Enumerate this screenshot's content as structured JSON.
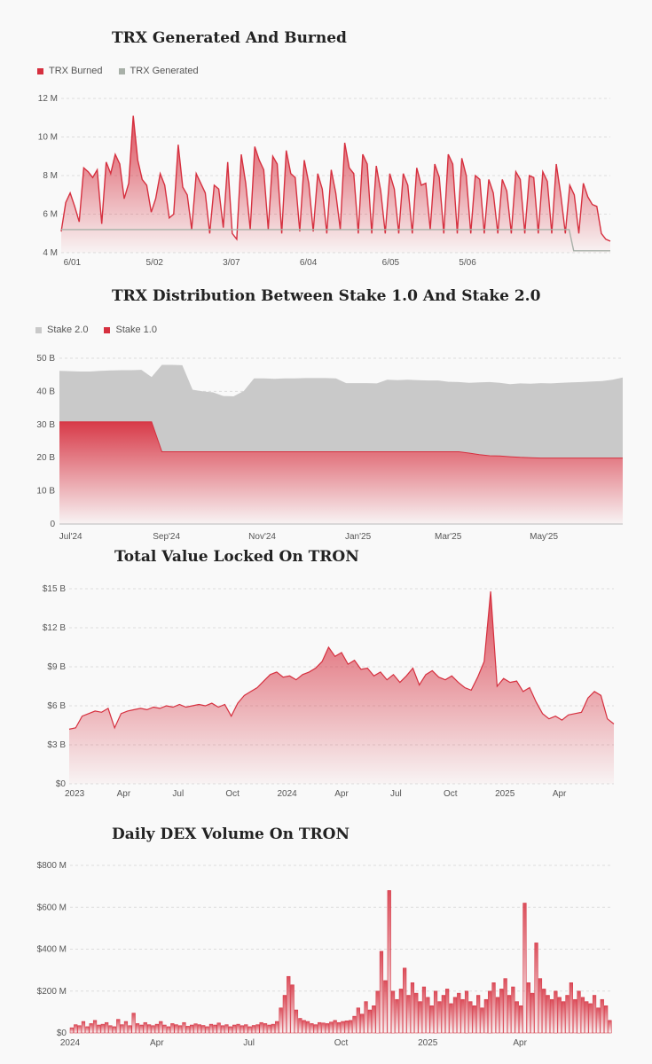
{
  "colors": {
    "red": "#d6303f",
    "gray": "#a8b0a8",
    "stake2": "#c9c9c9",
    "grid": "#dddddd"
  },
  "chart_data": [
    {
      "id": "trx",
      "type": "area",
      "title": "TRX Generated And Burned",
      "legend": [
        {
          "label": "TRX Burned",
          "color": "#d6303f"
        },
        {
          "label": "TRX Generated",
          "color": "#a8b0a8"
        }
      ],
      "y_ticks": [
        "12 M",
        "10 M",
        "8 M",
        "6 M",
        "4 M"
      ],
      "y_tick_values": [
        12,
        10,
        8,
        6,
        4
      ],
      "ylim": [
        4,
        12
      ],
      "x_ticks": [
        "6/01",
        "5/02",
        "3/07",
        "6/04",
        "6/05",
        "5/06"
      ],
      "x_tick_positions": [
        0.02,
        0.17,
        0.31,
        0.45,
        0.6,
        0.74
      ],
      "grid": true,
      "series": [
        {
          "name": "TRX Burned",
          "color": "#d6303f",
          "values": [
            5.1,
            6.6,
            7.1,
            6.4,
            5.6,
            8.4,
            8.2,
            7.9,
            8.3,
            5.5,
            8.7,
            8.1,
            9.1,
            8.6,
            6.8,
            7.6,
            11.1,
            8.8,
            7.8,
            7.5,
            6.1,
            6.8,
            8.1,
            7.5,
            5.8,
            6.0,
            9.6,
            7.4,
            7.0,
            5.2,
            8.1,
            7.6,
            7.1,
            5.0,
            7.5,
            7.3,
            5.3,
            8.7,
            5.0,
            4.7,
            9.1,
            7.6,
            5.2,
            9.5,
            8.8,
            8.3,
            5.2,
            9.0,
            8.6,
            5.0,
            9.3,
            8.1,
            7.9,
            5.1,
            8.8,
            7.6,
            5.1,
            8.1,
            7.3,
            5.0,
            8.3,
            7.1,
            5.2,
            9.7,
            8.4,
            8.1,
            5.0,
            9.1,
            8.6,
            5.0,
            8.5,
            7.2,
            5.0,
            8.1,
            7.3,
            5.0,
            8.1,
            7.5,
            5.0,
            8.4,
            7.5,
            7.6,
            5.2,
            8.6,
            7.9,
            5.0,
            9.1,
            8.6,
            5.0,
            8.9,
            8.0,
            5.0,
            8.0,
            7.8,
            5.0,
            7.8,
            7.1,
            5.0,
            7.8,
            7.2,
            5.0,
            8.2,
            7.8,
            5.0,
            8.0,
            7.9,
            5.0,
            8.2,
            7.7,
            5.0,
            8.6,
            7.0,
            5.0,
            7.5,
            7.0,
            5.0,
            7.6,
            6.9,
            6.5,
            6.4,
            5.0,
            4.7,
            4.6
          ]
        },
        {
          "name": "TRX Generated",
          "color": "#a8b0a8",
          "values": [
            5.2,
            5.2,
            5.2,
            5.2,
            5.2,
            5.2,
            5.2,
            5.2,
            5.2,
            5.2,
            5.2,
            5.2,
            5.2,
            5.2,
            5.2,
            5.2,
            5.2,
            5.2,
            5.2,
            5.2,
            5.2,
            5.2,
            5.2,
            5.2,
            5.2,
            5.2,
            5.2,
            5.2,
            5.2,
            5.2,
            5.2,
            5.2,
            5.2,
            5.2,
            5.2,
            5.2,
            5.2,
            5.2,
            5.2,
            5.2,
            5.2,
            5.2,
            5.2,
            5.2,
            5.2,
            5.2,
            5.2,
            5.2,
            5.2,
            5.2,
            5.2,
            5.2,
            5.2,
            5.2,
            5.2,
            5.2,
            5.2,
            5.2,
            5.2,
            5.2,
            5.2,
            5.2,
            5.2,
            5.2,
            5.2,
            5.2,
            5.2,
            5.2,
            5.2,
            5.2,
            5.2,
            5.2,
            5.2,
            5.2,
            5.2,
            5.2,
            5.2,
            5.2,
            5.2,
            5.2,
            5.2,
            5.2,
            5.2,
            5.2,
            5.2,
            5.2,
            5.2,
            5.2,
            5.2,
            5.2,
            5.2,
            5.2,
            5.2,
            5.2,
            5.2,
            5.2,
            5.2,
            5.2,
            5.2,
            5.2,
            5.2,
            5.2,
            5.2,
            5.2,
            5.2,
            5.2,
            5.2,
            5.2,
            5.2,
            5.2,
            5.2,
            5.2,
            4.1,
            4.1,
            4.1,
            4.1,
            4.1,
            4.1,
            4.1,
            4.1,
            4.1
          ]
        }
      ]
    },
    {
      "id": "stake",
      "type": "area",
      "title": "TRX Distribution Between Stake 1.0 And Stake 2.0",
      "legend": [
        {
          "label": "Stake 2.0",
          "color": "#c9c9c9"
        },
        {
          "label": "Stake 1.0",
          "color": "#d6303f"
        }
      ],
      "y_ticks": [
        "50 B",
        "40 B",
        "30 B",
        "20 B",
        "10 B",
        "0"
      ],
      "y_tick_values": [
        50,
        40,
        30,
        20,
        10,
        0
      ],
      "ylim": [
        0,
        50
      ],
      "x_ticks": [
        "Jul'24",
        "Sep'24",
        "Nov'24",
        "Jan'25",
        "Mar'25",
        "May'25"
      ],
      "x_tick_positions": [
        0.02,
        0.19,
        0.36,
        0.53,
        0.69,
        0.86
      ],
      "grid": true,
      "series": [
        {
          "name": "Stake 2.0",
          "color": "#c9c9c9",
          "values": [
            46.2,
            46.1,
            46.0,
            46.0,
            46.2,
            46.3,
            46.4,
            46.4,
            46.5,
            44.3,
            48.0,
            48.0,
            47.9,
            40.5,
            40.0,
            39.7,
            38.6,
            38.5,
            40.1,
            43.9,
            43.9,
            43.8,
            43.9,
            43.9,
            44.0,
            44.0,
            44.0,
            43.9,
            42.5,
            42.5,
            42.5,
            42.4,
            43.5,
            43.4,
            43.5,
            43.4,
            43.3,
            43.3,
            42.9,
            42.8,
            42.6,
            42.7,
            42.8,
            42.6,
            42.2,
            42.4,
            42.3,
            42.5,
            42.4,
            42.6,
            42.7,
            42.8,
            43.0,
            43.1,
            43.5,
            44.2
          ]
        },
        {
          "name": "Stake 1.0",
          "color": "#d6303f",
          "values": [
            30.8,
            30.8,
            30.8,
            30.8,
            30.8,
            30.8,
            30.8,
            30.8,
            30.8,
            30.8,
            21.8,
            21.8,
            21.8,
            21.8,
            21.8,
            21.8,
            21.8,
            21.8,
            21.8,
            21.8,
            21.8,
            21.8,
            21.8,
            21.8,
            21.8,
            21.8,
            21.8,
            21.8,
            21.8,
            21.8,
            21.8,
            21.8,
            21.8,
            21.8,
            21.8,
            21.8,
            21.8,
            21.8,
            21.8,
            21.8,
            21.4,
            20.9,
            20.6,
            20.5,
            20.3,
            20.1,
            20.0,
            19.9,
            19.9,
            19.9,
            19.9,
            19.9,
            19.9,
            19.9,
            19.9,
            19.9
          ]
        }
      ]
    },
    {
      "id": "tvl",
      "type": "area",
      "title": "Total Value Locked On TRON",
      "y_ticks": [
        "$15 B",
        "$12 B",
        "$9 B",
        "$6 B",
        "$3 B",
        "$0"
      ],
      "y_tick_values": [
        15,
        12,
        9,
        6,
        3,
        0
      ],
      "ylim": [
        0,
        15
      ],
      "x_ticks": [
        "2023",
        "Apr",
        "Jul",
        "Oct",
        "2024",
        "Apr",
        "Jul",
        "Oct",
        "2025",
        "Apr"
      ],
      "x_tick_positions": [
        0.01,
        0.1,
        0.2,
        0.3,
        0.4,
        0.5,
        0.6,
        0.7,
        0.8,
        0.9
      ],
      "grid": true,
      "series": [
        {
          "name": "TVL",
          "color": "#d6303f",
          "values": [
            4.2,
            4.3,
            5.2,
            5.4,
            5.6,
            5.5,
            5.8,
            4.3,
            5.4,
            5.6,
            5.7,
            5.8,
            5.7,
            5.9,
            5.8,
            6.0,
            5.9,
            6.1,
            5.9,
            6.0,
            6.1,
            6.0,
            6.2,
            5.9,
            6.1,
            5.2,
            6.2,
            6.8,
            7.1,
            7.4,
            7.9,
            8.4,
            8.6,
            8.2,
            8.3,
            8.0,
            8.4,
            8.6,
            8.9,
            9.4,
            10.5,
            9.8,
            10.1,
            9.2,
            9.5,
            8.8,
            8.9,
            8.3,
            8.6,
            8.0,
            8.4,
            7.8,
            8.3,
            8.9,
            7.6,
            8.4,
            8.7,
            8.2,
            8.0,
            8.3,
            7.8,
            7.4,
            7.2,
            8.2,
            9.4,
            14.8,
            7.5,
            8.1,
            7.8,
            7.9,
            7.1,
            7.4,
            6.3,
            5.4,
            5.0,
            5.2,
            4.9,
            5.3,
            5.4,
            5.5,
            6.6,
            7.1,
            6.8,
            5.0,
            4.6
          ]
        }
      ]
    },
    {
      "id": "dex",
      "type": "bar",
      "title": "Daily DEX Volume On TRON",
      "y_ticks": [
        "$800 M",
        "$600 M",
        "$400 M",
        "$200 M",
        "$0"
      ],
      "y_tick_values": [
        800,
        600,
        400,
        200,
        0
      ],
      "ylim": [
        0,
        800
      ],
      "x_ticks": [
        "2024",
        "Apr",
        "Jul",
        "Oct",
        "2025",
        "Apr"
      ],
      "x_tick_positions": [
        0.0,
        0.16,
        0.33,
        0.5,
        0.66,
        0.83
      ],
      "grid": true,
      "series": [
        {
          "name": "DEX Volume",
          "color": "#d6303f",
          "values": [
            25,
            40,
            35,
            55,
            30,
            45,
            60,
            38,
            42,
            50,
            35,
            30,
            65,
            40,
            55,
            35,
            95,
            45,
            38,
            50,
            40,
            35,
            42,
            55,
            38,
            30,
            45,
            40,
            35,
            50,
            32,
            38,
            44,
            40,
            36,
            30,
            42,
            38,
            48,
            35,
            40,
            30,
            38,
            42,
            35,
            40,
            30,
            36,
            40,
            50,
            45,
            38,
            42,
            55,
            120,
            180,
            270,
            230,
            110,
            70,
            60,
            55,
            45,
            40,
            50,
            48,
            45,
            52,
            60,
            50,
            55,
            58,
            60,
            80,
            120,
            90,
            150,
            110,
            130,
            200,
            390,
            250,
            680,
            200,
            160,
            210,
            310,
            180,
            240,
            190,
            150,
            220,
            170,
            130,
            200,
            150,
            180,
            210,
            140,
            170,
            190,
            160,
            200,
            150,
            130,
            180,
            120,
            160,
            200,
            240,
            170,
            210,
            260,
            180,
            220,
            150,
            130,
            620,
            240,
            190,
            430,
            260,
            210,
            180,
            160,
            200,
            170,
            150,
            180,
            240,
            160,
            200,
            170,
            150,
            140,
            180,
            120,
            160,
            130,
            60
          ]
        }
      ]
    }
  ]
}
